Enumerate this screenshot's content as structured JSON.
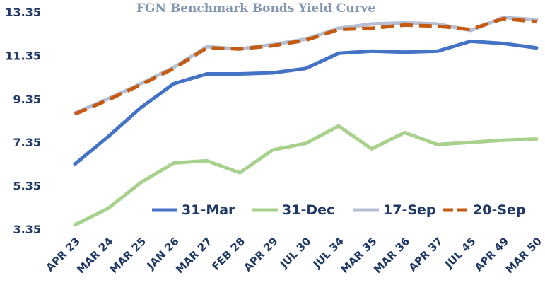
{
  "chart_data": {
    "type": "line",
    "title": "FGN Benchmark Bonds Yield Curve",
    "categories": [
      "APR 23",
      "MAR 24",
      "MAR 25",
      "JAN 26",
      "MAR 27",
      "FEB 28",
      "APR 29",
      "JUL 30",
      "JUL 34",
      "MAR 35",
      "MAR 36",
      "APR 37",
      "JUL 45",
      "APR 49",
      "MAR 50"
    ],
    "y_ticks": [
      "3.35",
      "5.35",
      "7.35",
      "9.35",
      "11.35",
      "13.35"
    ],
    "ylim": [
      3.35,
      13.35
    ],
    "grid": false,
    "legend_position": "bottom-right (inside plot)",
    "series": [
      {
        "name": "31-Mar",
        "color": "#4472c4",
        "dash": false,
        "values": [
          6.35,
          7.6,
          8.95,
          10.05,
          10.5,
          10.5,
          10.55,
          10.75,
          11.45,
          11.55,
          11.5,
          11.55,
          12.0,
          11.9,
          11.7
        ]
      },
      {
        "name": "31-Dec",
        "color": "#a9d18e",
        "dash": false,
        "values": [
          3.55,
          4.3,
          5.5,
          6.4,
          6.5,
          5.95,
          7.0,
          7.3,
          8.1,
          7.05,
          7.8,
          7.25,
          7.35,
          7.45,
          7.5
        ]
      },
      {
        "name": "17-Sep",
        "color": "#b4bfd3",
        "dash": false,
        "values": [
          8.7,
          9.35,
          10.05,
          10.8,
          11.75,
          11.65,
          11.85,
          12.1,
          12.6,
          12.8,
          12.85,
          12.8,
          12.5,
          13.1,
          13.0
        ]
      },
      {
        "name": "20-Sep",
        "color": "#c55a11",
        "dash": true,
        "values": [
          8.65,
          9.3,
          10.0,
          10.75,
          11.7,
          11.65,
          11.8,
          12.05,
          12.55,
          12.6,
          12.75,
          12.7,
          12.55,
          13.05,
          12.9
        ]
      }
    ]
  }
}
